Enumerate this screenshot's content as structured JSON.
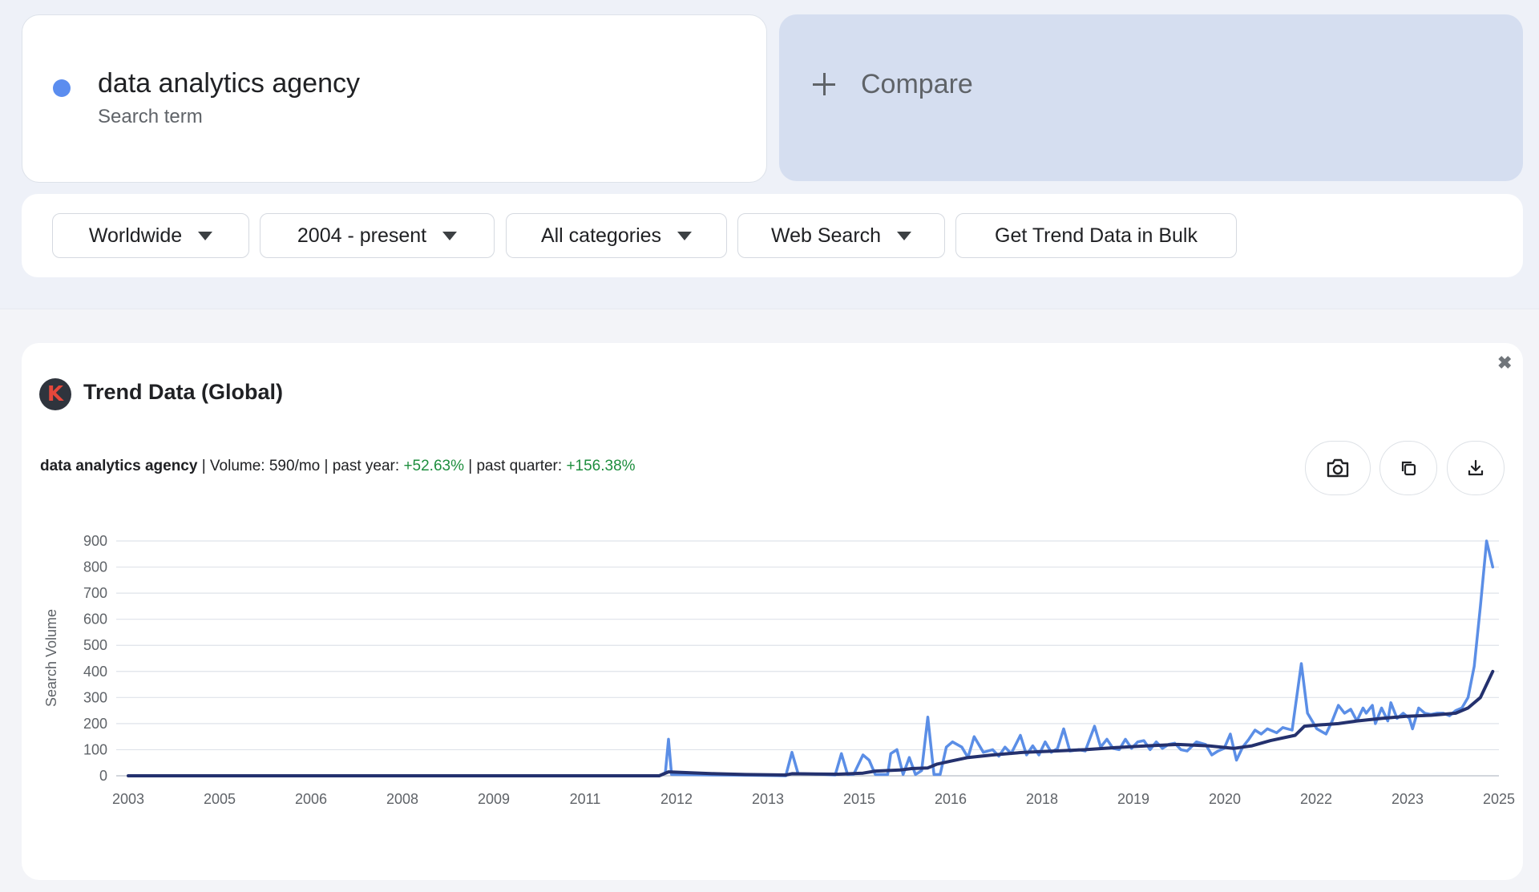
{
  "search": {
    "term": "data analytics agency",
    "subtitle": "Search term",
    "dot_color": "#5b8def"
  },
  "compare": {
    "label": "Compare"
  },
  "filters": {
    "region": "Worldwide",
    "period": "2004 - present",
    "category": "All categories",
    "source": "Web Search",
    "bulk": "Get Trend Data in Bulk"
  },
  "panel": {
    "title": "Trend Data (Global)",
    "logo_letter": "K",
    "close_glyph": "✖",
    "keyword": "data analytics agency",
    "volume": " | Volume: 590/mo | past year: ",
    "past_year": "+52.63%",
    "mid": " | past quarter: ",
    "past_quarter": "+156.38%",
    "icons": [
      "camera-icon",
      "copy-icon",
      "download-icon"
    ]
  },
  "chart_data": {
    "type": "line",
    "ylabel": "Search Volume",
    "ylim": [
      0,
      900
    ],
    "yticks": [
      0,
      100,
      200,
      300,
      400,
      500,
      600,
      700,
      800,
      900
    ],
    "xlim": [
      2003,
      2025.2
    ],
    "xtick_labels": [
      "2003",
      "2005",
      "2006",
      "2008",
      "2009",
      "2011",
      "2012",
      "2013",
      "2015",
      "2016",
      "2018",
      "2019",
      "2020",
      "2022",
      "2023",
      "2025"
    ],
    "colors": {
      "raw": "#5b8ee6",
      "trend": "#24316e"
    },
    "series": [
      {
        "values": [
          [
            2003,
            0
          ],
          [
            2011.6,
            0
          ],
          [
            2011.7,
            12
          ],
          [
            2011.75,
            140
          ],
          [
            2011.8,
            5
          ],
          [
            2012.5,
            3
          ],
          [
            2013,
            2
          ],
          [
            2013.5,
            1
          ],
          [
            2013.65,
            0
          ],
          [
            2013.75,
            90
          ],
          [
            2013.85,
            8
          ],
          [
            2014.2,
            6
          ],
          [
            2014.45,
            3
          ],
          [
            2014.55,
            85
          ],
          [
            2014.65,
            5
          ],
          [
            2014.75,
            6
          ],
          [
            2014.9,
            80
          ],
          [
            2015,
            60
          ],
          [
            2015.1,
            5
          ],
          [
            2015.3,
            5
          ],
          [
            2015.35,
            85
          ],
          [
            2015.45,
            100
          ],
          [
            2015.55,
            5
          ],
          [
            2015.65,
            70
          ],
          [
            2015.75,
            5
          ],
          [
            2015.85,
            20
          ],
          [
            2015.95,
            225
          ],
          [
            2016.05,
            5
          ],
          [
            2016.15,
            5
          ],
          [
            2016.25,
            110
          ],
          [
            2016.35,
            130
          ],
          [
            2016.5,
            110
          ],
          [
            2016.6,
            70
          ],
          [
            2016.7,
            150
          ],
          [
            2016.85,
            90
          ],
          [
            2017,
            100
          ],
          [
            2017.1,
            75
          ],
          [
            2017.2,
            110
          ],
          [
            2017.3,
            85
          ],
          [
            2017.45,
            155
          ],
          [
            2017.55,
            80
          ],
          [
            2017.65,
            115
          ],
          [
            2017.75,
            80
          ],
          [
            2017.85,
            130
          ],
          [
            2017.95,
            90
          ],
          [
            2018.05,
            105
          ],
          [
            2018.15,
            180
          ],
          [
            2018.25,
            95
          ],
          [
            2018.4,
            100
          ],
          [
            2018.5,
            95
          ],
          [
            2018.65,
            190
          ],
          [
            2018.75,
            110
          ],
          [
            2018.85,
            140
          ],
          [
            2018.95,
            105
          ],
          [
            2019.05,
            100
          ],
          [
            2019.15,
            140
          ],
          [
            2019.25,
            105
          ],
          [
            2019.35,
            130
          ],
          [
            2019.45,
            135
          ],
          [
            2019.55,
            100
          ],
          [
            2019.65,
            130
          ],
          [
            2019.75,
            105
          ],
          [
            2019.85,
            120
          ],
          [
            2019.95,
            125
          ],
          [
            2020.05,
            100
          ],
          [
            2020.15,
            95
          ],
          [
            2020.3,
            130
          ],
          [
            2020.45,
            120
          ],
          [
            2020.55,
            80
          ],
          [
            2020.65,
            95
          ],
          [
            2020.75,
            105
          ],
          [
            2020.85,
            160
          ],
          [
            2020.95,
            60
          ],
          [
            2021.05,
            110
          ],
          [
            2021.15,
            140
          ],
          [
            2021.25,
            175
          ],
          [
            2021.35,
            160
          ],
          [
            2021.45,
            180
          ],
          [
            2021.6,
            165
          ],
          [
            2021.7,
            185
          ],
          [
            2021.85,
            175
          ],
          [
            2022,
            430
          ],
          [
            2022.1,
            240
          ],
          [
            2022.25,
            180
          ],
          [
            2022.4,
            160
          ],
          [
            2022.5,
            210
          ],
          [
            2022.6,
            270
          ],
          [
            2022.7,
            240
          ],
          [
            2022.8,
            255
          ],
          [
            2022.9,
            210
          ],
          [
            2023,
            260
          ],
          [
            2023.05,
            240
          ],
          [
            2023.15,
            270
          ],
          [
            2023.2,
            200
          ],
          [
            2023.3,
            260
          ],
          [
            2023.4,
            210
          ],
          [
            2023.45,
            280
          ],
          [
            2023.55,
            220
          ],
          [
            2023.65,
            240
          ],
          [
            2023.75,
            220
          ],
          [
            2023.8,
            180
          ],
          [
            2023.9,
            260
          ],
          [
            2024,
            240
          ],
          [
            2024.1,
            235
          ],
          [
            2024.2,
            240
          ],
          [
            2024.3,
            240
          ],
          [
            2024.4,
            230
          ],
          [
            2024.5,
            250
          ],
          [
            2024.6,
            260
          ],
          [
            2024.7,
            300
          ],
          [
            2024.8,
            420
          ],
          [
            2024.9,
            650
          ],
          [
            2025.0,
            900
          ],
          [
            2025.1,
            800
          ]
        ]
      },
      {
        "values": [
          [
            2003,
            0
          ],
          [
            2011.6,
            0
          ],
          [
            2011.75,
            15
          ],
          [
            2012.5,
            8
          ],
          [
            2013,
            5
          ],
          [
            2013.65,
            3
          ],
          [
            2013.75,
            8
          ],
          [
            2014.5,
            6
          ],
          [
            2014.9,
            10
          ],
          [
            2015.1,
            18
          ],
          [
            2015.5,
            22
          ],
          [
            2015.7,
            28
          ],
          [
            2015.95,
            30
          ],
          [
            2016.1,
            45
          ],
          [
            2016.3,
            55
          ],
          [
            2016.6,
            70
          ],
          [
            2017,
            80
          ],
          [
            2017.5,
            90
          ],
          [
            2018,
            95
          ],
          [
            2018.5,
            100
          ],
          [
            2019,
            108
          ],
          [
            2019.5,
            115
          ],
          [
            2020,
            120
          ],
          [
            2020.5,
            115
          ],
          [
            2020.9,
            105
          ],
          [
            2021.2,
            115
          ],
          [
            2021.5,
            135
          ],
          [
            2021.9,
            155
          ],
          [
            2022.05,
            190
          ],
          [
            2022.3,
            195
          ],
          [
            2022.6,
            200
          ],
          [
            2022.9,
            210
          ],
          [
            2023.3,
            220
          ],
          [
            2023.7,
            228
          ],
          [
            2024.1,
            232
          ],
          [
            2024.5,
            240
          ],
          [
            2024.7,
            260
          ],
          [
            2024.9,
            300
          ],
          [
            2025.1,
            400
          ]
        ]
      }
    ]
  }
}
